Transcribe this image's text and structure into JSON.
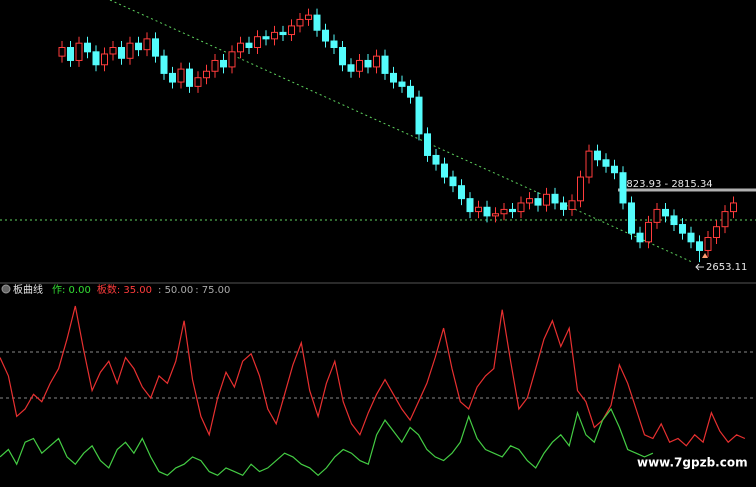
{
  "chart_data": [
    {
      "type": "candlestick",
      "open": [
        3130,
        3150,
        3120,
        3160,
        3140,
        3110,
        3135,
        3150,
        3125,
        3160,
        3145,
        3170,
        3130,
        3090,
        3070,
        3100,
        3060,
        3080,
        3095,
        3120,
        3105,
        3140,
        3160,
        3150,
        3175,
        3170,
        3185,
        3180,
        3200,
        3215,
        3225,
        3190,
        3165,
        3150,
        3110,
        3095,
        3120,
        3105,
        3130,
        3090,
        3070,
        3060,
        3035,
        2950,
        2900,
        2880,
        2850,
        2830,
        2800,
        2770,
        2780,
        2760,
        2765,
        2775,
        2770,
        2790,
        2800,
        2785,
        2810,
        2790,
        2775,
        2795,
        2850,
        2910,
        2890,
        2875,
        2860,
        2790,
        2720,
        2700,
        2745,
        2775,
        2760,
        2740,
        2720,
        2700,
        2680,
        2710,
        2735,
        2770
      ],
      "high": [
        3165,
        3165,
        3175,
        3175,
        3155,
        3150,
        3165,
        3165,
        3175,
        3175,
        3185,
        3185,
        3145,
        3105,
        3115,
        3115,
        3095,
        3110,
        3135,
        3135,
        3155,
        3175,
        3175,
        3190,
        3190,
        3200,
        3200,
        3215,
        3230,
        3240,
        3240,
        3205,
        3180,
        3165,
        3125,
        3135,
        3135,
        3145,
        3145,
        3105,
        3085,
        3075,
        3050,
        2965,
        2915,
        2895,
        2865,
        2845,
        2815,
        2795,
        2795,
        2780,
        2790,
        2790,
        2805,
        2815,
        2815,
        2825,
        2825,
        2805,
        2810,
        2865,
        2925,
        2925,
        2905,
        2890,
        2875,
        2805,
        2735,
        2760,
        2790,
        2790,
        2775,
        2755,
        2735,
        2715,
        2725,
        2750,
        2785,
        2805
      ],
      "low": [
        3115,
        3105,
        3105,
        3125,
        3095,
        3095,
        3120,
        3110,
        3110,
        3130,
        3130,
        3115,
        3075,
        3055,
        3055,
        3045,
        3045,
        3065,
        3080,
        3090,
        3090,
        3125,
        3135,
        3135,
        3155,
        3155,
        3165,
        3165,
        3185,
        3200,
        3175,
        3150,
        3135,
        3095,
        3080,
        3080,
        3090,
        3090,
        3075,
        3055,
        3045,
        3020,
        2935,
        2885,
        2865,
        2835,
        2815,
        2785,
        2755,
        2755,
        2745,
        2745,
        2750,
        2755,
        2755,
        2775,
        2770,
        2770,
        2775,
        2760,
        2760,
        2780,
        2835,
        2875,
        2860,
        2845,
        2775,
        2705,
        2685,
        2685,
        2730,
        2745,
        2725,
        2705,
        2685,
        2653.11,
        2665,
        2695,
        2720,
        2755
      ],
      "close": [
        3150,
        3120,
        3160,
        3140,
        3110,
        3135,
        3150,
        3125,
        3160,
        3145,
        3170,
        3130,
        3090,
        3070,
        3100,
        3060,
        3080,
        3095,
        3120,
        3105,
        3140,
        3160,
        3150,
        3175,
        3170,
        3185,
        3180,
        3200,
        3215,
        3225,
        3190,
        3165,
        3150,
        3110,
        3095,
        3120,
        3105,
        3130,
        3090,
        3070,
        3060,
        3035,
        2950,
        2900,
        2880,
        2850,
        2830,
        2800,
        2770,
        2780,
        2760,
        2765,
        2775,
        2770,
        2790,
        2800,
        2785,
        2810,
        2790,
        2775,
        2795,
        2850,
        2910,
        2890,
        2875,
        2860,
        2790,
        2720,
        2700,
        2745,
        2775,
        2760,
        2740,
        2720,
        2700,
        2680,
        2710,
        2735,
        2770,
        2790
      ],
      "up_color": "#ff3c3c",
      "down_color": "#54fcfc",
      "ylim": [
        2600,
        3260
      ],
      "range_label": "2823.93 - 2815.34"
    },
    {
      "type": "line",
      "title": "板曲线",
      "params": [
        {
          "label": "作: 0.00",
          "color": "#33dd33"
        },
        {
          "label": "板数: 35.00",
          "color": "#ff3c3c"
        }
      ],
      "levels": [
        {
          "value": 50,
          "label": ": 50.00"
        },
        {
          "value": 75,
          "label": ": 75.00"
        }
      ],
      "ylim": [
        0,
        100
      ],
      "series": [
        {
          "color": "#e83030",
          "values": [
            72,
            62,
            40,
            44,
            52,
            48,
            58,
            66,
            82,
            100,
            76,
            54,
            64,
            70,
            58,
            72,
            66,
            56,
            50,
            62,
            58,
            70,
            92,
            60,
            40,
            30,
            50,
            64,
            56,
            70,
            74,
            62,
            44,
            36,
            52,
            68,
            80,
            54,
            40,
            58,
            70,
            48,
            36,
            30,
            42,
            52,
            60,
            52,
            44,
            38,
            48,
            58,
            72,
            88,
            66,
            48,
            44,
            56,
            62,
            66,
            98,
            70,
            44,
            50,
            66,
            82,
            92,
            78,
            88,
            54,
            48,
            34,
            38,
            46,
            68,
            58,
            44,
            30,
            28,
            36,
            26,
            28,
            24,
            30,
            26,
            42,
            32,
            26,
            30,
            28
          ]
        },
        {
          "color": "#44cc44",
          "values": [
            18,
            22,
            14,
            26,
            28,
            20,
            24,
            28,
            18,
            14,
            20,
            24,
            16,
            12,
            22,
            26,
            20,
            28,
            18,
            10,
            8,
            12,
            14,
            18,
            16,
            10,
            8,
            12,
            10,
            8,
            14,
            10,
            12,
            16,
            20,
            18,
            14,
            12,
            8,
            12,
            18,
            22,
            20,
            16,
            14,
            30,
            38,
            32,
            26,
            34,
            30,
            22,
            18,
            16,
            20,
            26,
            40,
            28,
            22,
            20,
            18,
            24,
            22,
            16,
            12,
            20,
            26,
            30,
            24,
            42,
            30,
            26,
            38,
            44,
            34,
            22,
            20,
            18,
            20,
            null,
            null,
            null,
            null,
            null,
            null,
            null,
            null,
            null,
            null,
            null
          ]
        }
      ],
      "watermark": "www.7gpzb.com"
    }
  ]
}
